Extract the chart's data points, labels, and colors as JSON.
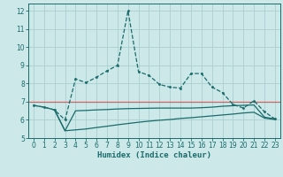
{
  "xlabel": "Humidex (Indice chaleur)",
  "bg_color": "#cce8e8",
  "grid_color": "#aad0d0",
  "line_color": "#1a6b6b",
  "red_line_color": "#cc6666",
  "spine_color": "#1a6b6b",
  "xlim": [
    -0.5,
    23.5
  ],
  "ylim": [
    5,
    12.4
  ],
  "xticks": [
    0,
    1,
    2,
    3,
    4,
    5,
    6,
    7,
    8,
    9,
    10,
    11,
    12,
    13,
    14,
    15,
    16,
    17,
    18,
    19,
    20,
    21,
    22,
    23
  ],
  "yticks": [
    5,
    6,
    7,
    8,
    9,
    10,
    11,
    12
  ],
  "red_line_y": 7.0,
  "line1_x": [
    0,
    1,
    2,
    3,
    4,
    5,
    6,
    7,
    8,
    9,
    10,
    11,
    12,
    13,
    14,
    15,
    16,
    17,
    18,
    19,
    20,
    21,
    22,
    23
  ],
  "line1_y": [
    6.8,
    6.7,
    6.55,
    6.0,
    8.25,
    8.05,
    8.35,
    8.7,
    9.0,
    12.0,
    8.65,
    8.45,
    7.95,
    7.8,
    7.75,
    8.55,
    8.55,
    7.8,
    7.5,
    6.85,
    6.65,
    7.05,
    6.45,
    6.05
  ],
  "line2_x": [
    0,
    1,
    2,
    3,
    4,
    5,
    6,
    7,
    8,
    9,
    10,
    11,
    12,
    13,
    14,
    15,
    16,
    17,
    18,
    19,
    20,
    21,
    22,
    23
  ],
  "line2_y": [
    6.8,
    6.7,
    6.55,
    5.4,
    6.5,
    6.52,
    6.55,
    6.57,
    6.6,
    6.62,
    6.63,
    6.64,
    6.65,
    6.65,
    6.65,
    6.65,
    6.67,
    6.7,
    6.75,
    6.78,
    6.8,
    6.82,
    6.15,
    6.05
  ],
  "line3_x": [
    2,
    3,
    4,
    5,
    6,
    7,
    8,
    9,
    10,
    11,
    12,
    13,
    14,
    15,
    16,
    17,
    18,
    19,
    20,
    21,
    22,
    23
  ],
  "line3_y": [
    6.55,
    5.4,
    5.45,
    5.5,
    5.58,
    5.65,
    5.73,
    5.8,
    5.87,
    5.93,
    5.98,
    6.02,
    6.08,
    6.12,
    6.17,
    6.22,
    6.27,
    6.32,
    6.38,
    6.42,
    6.1,
    6.02
  ],
  "tick_fontsize": 5.5,
  "xlabel_fontsize": 6.5
}
